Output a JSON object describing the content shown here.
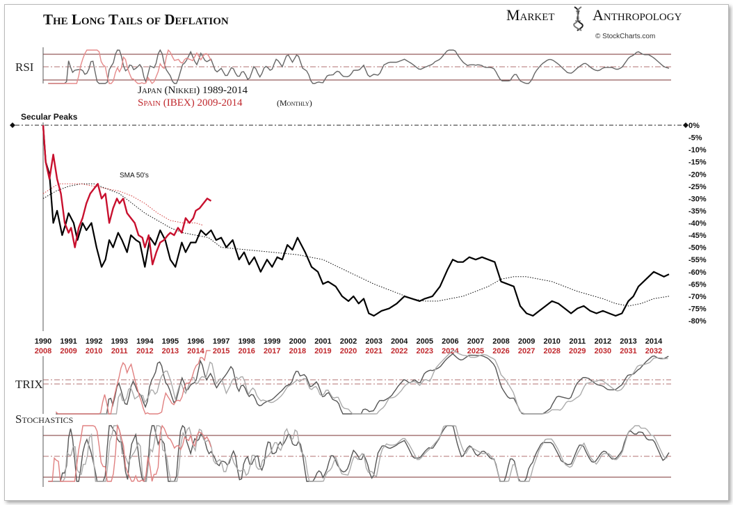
{
  "header": {
    "title": "The Long Tails of Deflation",
    "brand_left": "Market",
    "brand_right": "Anthropology",
    "credit": "© StockCharts.com"
  },
  "panels": {
    "rsi_label": "RSI",
    "trix_label": "TRIX",
    "stoch_label": "Stochastics"
  },
  "legend": {
    "japan": "Japan (Nikkei) 1989-2014",
    "spain": "Spain (IBEX) 2009-2014",
    "spain_suffix": "(Monthly)"
  },
  "annotations": {
    "secular_peaks": "Secular Peaks",
    "sma": "SMA 50's"
  },
  "colors": {
    "japan": "#000000",
    "spain": "#c8102e",
    "spain_label": "#c0282d",
    "sma_japan": "#000000",
    "sma_spain": "#d23a3a",
    "panel_line": "#7a3030"
  },
  "chart_data": {
    "type": "line",
    "ylim": [
      -82,
      0
    ],
    "y_ticks": [
      "0%",
      "-5%",
      "-10%",
      "-15%",
      "-20%",
      "-25%",
      "-30%",
      "-35%",
      "-40%",
      "-45%",
      "-50%",
      "-55%",
      "-60%",
      "-65%",
      "-70%",
      "-75%",
      "-80%"
    ],
    "y_tick_values": [
      0,
      -5,
      -10,
      -15,
      -20,
      -25,
      -30,
      -35,
      -40,
      -45,
      -50,
      -55,
      -60,
      -65,
      -70,
      -75,
      -80
    ],
    "x_ticks_japan": [
      "1990",
      "1991",
      "1992",
      "1993",
      "1994",
      "1995",
      "1996",
      "1997",
      "1998",
      "1999",
      "2000",
      "2001",
      "2002",
      "2003",
      "2004",
      "2005",
      "2006",
      "2007",
      "2008",
      "2009",
      "2010",
      "2011",
      "2012",
      "2013",
      "2014"
    ],
    "x_ticks_spain": [
      "2008",
      "2009",
      "2010",
      "2011",
      "2012",
      "2013",
      "2014",
      "2015",
      "2016",
      "2017",
      "2018",
      "2019",
      "2020",
      "2021",
      "2022",
      "2023",
      "2024",
      "2025",
      "2026",
      "2027",
      "2028",
      "2029",
      "2030",
      "2031",
      "2032"
    ],
    "x_range_japan": [
      1990,
      2014.6
    ],
    "series": [
      {
        "name": "Japan (Nikkei) 1989-2014",
        "x": [
          1990.0,
          1990.1,
          1990.25,
          1990.4,
          1990.55,
          1990.75,
          1990.9,
          1991.0,
          1991.2,
          1991.35,
          1991.55,
          1991.7,
          1991.9,
          1992.1,
          1992.3,
          1992.45,
          1992.6,
          1992.75,
          1992.95,
          1993.1,
          1993.3,
          1993.45,
          1993.65,
          1993.8,
          1994.0,
          1994.2,
          1994.4,
          1994.6,
          1994.8,
          1995.0,
          1995.2,
          1995.45,
          1995.6,
          1995.8,
          1996.0,
          1996.2,
          1996.4,
          1996.6,
          1996.8,
          1997.0,
          1997.2,
          1997.45,
          1997.7,
          1997.9,
          1998.1,
          1998.3,
          1998.55,
          1998.8,
          1999.0,
          1999.2,
          1999.4,
          1999.6,
          1999.8,
          2000.0,
          2000.1,
          2000.3,
          2000.55,
          2000.8,
          2001.0,
          2001.2,
          2001.5,
          2001.75,
          2002.0,
          2002.2,
          2002.4,
          2002.6,
          2002.8,
          2003.0,
          2003.3,
          2003.6,
          2003.9,
          2004.2,
          2004.5,
          2004.8,
          2005.0,
          2005.3,
          2005.6,
          2005.9,
          2006.1,
          2006.3,
          2006.5,
          2006.75,
          2007.0,
          2007.25,
          2007.5,
          2007.75,
          2008.0,
          2008.25,
          2008.5,
          2008.75,
          2009.0,
          2009.25,
          2009.5,
          2009.75,
          2010.0,
          2010.25,
          2010.5,
          2010.75,
          2011.0,
          2011.25,
          2011.5,
          2011.75,
          2012.0,
          2012.25,
          2012.5,
          2012.75,
          2013.0,
          2013.2,
          2013.4,
          2013.6,
          2013.8,
          2014.0,
          2014.2,
          2014.4,
          2014.6
        ],
        "y": [
          0,
          -15,
          -20,
          -40,
          -35,
          -45,
          -40,
          -36,
          -40,
          -47,
          -40,
          -43,
          -40,
          -50,
          -58,
          -55,
          -47,
          -50,
          -44,
          -47,
          -52,
          -45,
          -47,
          -48,
          -58,
          -46,
          -49,
          -43,
          -47,
          -55,
          -58,
          -48,
          -52,
          -48,
          -48,
          -43,
          -45,
          -43,
          -47,
          -46,
          -50,
          -47,
          -55,
          -52,
          -57,
          -54,
          -60,
          -55,
          -58,
          -54,
          -55,
          -49,
          -51,
          -46,
          -48,
          -52,
          -58,
          -60,
          -65,
          -64,
          -66,
          -70,
          -72,
          -70,
          -73,
          -71,
          -77,
          -78,
          -76,
          -75,
          -73,
          -70,
          -71,
          -72,
          -71,
          -70,
          -66,
          -59,
          -55,
          -56,
          -56,
          -54,
          -55,
          -54,
          -55,
          -56,
          -64,
          -65,
          -66,
          -74,
          -77,
          -78,
          -76,
          -74,
          -72,
          -73,
          -75,
          -77,
          -75,
          -74,
          -76,
          -77,
          -76,
          -77,
          -78,
          -77,
          -72,
          -70,
          -66,
          -64,
          -62,
          -60,
          -61,
          -62,
          -61
        ]
      },
      {
        "name": "Spain (IBEX) 2009-2014",
        "x": [
          2008.0,
          2008.1,
          2008.25,
          2008.4,
          2008.55,
          2008.7,
          2008.85,
          2009.0,
          2009.1,
          2009.25,
          2009.4,
          2009.55,
          2009.7,
          2009.85,
          2010.0,
          2010.15,
          2010.3,
          2010.45,
          2010.6,
          2010.75,
          2010.9,
          2011.0,
          2011.15,
          2011.3,
          2011.45,
          2011.6,
          2011.75,
          2011.9,
          2012.0,
          2012.15,
          2012.3,
          2012.45,
          2012.6,
          2012.75,
          2012.9,
          2013.0,
          2013.15,
          2013.3,
          2013.45,
          2013.6,
          2013.75,
          2013.9,
          2014.0,
          2014.15,
          2014.3,
          2014.45,
          2014.6
        ],
        "y": [
          0,
          -15,
          -22,
          -12,
          -22,
          -28,
          -40,
          -44,
          -42,
          -50,
          -42,
          -38,
          -32,
          -28,
          -26,
          -24,
          -30,
          -28,
          -40,
          -34,
          -30,
          -32,
          -30,
          -36,
          -38,
          -40,
          -45,
          -46,
          -50,
          -45,
          -57,
          -52,
          -48,
          -47,
          -45,
          -44,
          -45,
          -42,
          -44,
          -38,
          -40,
          -38,
          -35,
          -34,
          -32,
          -30,
          -31
        ]
      },
      {
        "name": "SMA 50's",
        "x": [
          1990.0,
          1990.5,
          1991.0,
          1991.5,
          1992.0,
          1992.5,
          1993.0,
          1993.5,
          1994.0,
          1994.5,
          1995.0,
          1995.5,
          1996.0,
          1996.5,
          1997.0,
          1998.0,
          1999.0,
          2000.0,
          2001.0,
          2002.0,
          2003.0,
          2004.0,
          2004.5,
          2005.0,
          2005.5,
          2006.0,
          2006.5,
          2007.0,
          2007.5,
          2008.0,
          2008.5,
          2009.0,
          2009.5,
          2010.0,
          2011.0,
          2012.0,
          2012.5,
          2013.0,
          2013.5,
          2014.0,
          2014.6
        ],
        "y": [
          -30,
          -27,
          -25,
          -24,
          -24,
          -26,
          -28,
          -32,
          -36,
          -39,
          -42,
          -44,
          -45,
          -46,
          -50,
          -51,
          -52,
          -53,
          -55,
          -60,
          -65,
          -69,
          -71,
          -72,
          -72,
          -71,
          -70,
          -68,
          -66,
          -63,
          -62,
          -62,
          -63,
          -64,
          -68,
          -71,
          -73,
          -74,
          -73,
          -71,
          -70
        ]
      },
      {
        "name": "SMA 50's",
        "x": [
          2008.0,
          2008.3,
          2008.6,
          2009.0,
          2009.5,
          2010.0,
          2010.5,
          2011.0,
          2011.5,
          2012.0,
          2012.5,
          2013.0,
          2013.5,
          2014.0,
          2014.3
        ],
        "y": [
          -28,
          -26,
          -24,
          -24,
          -24,
          -25,
          -26,
          -27,
          -29,
          -32,
          -36,
          -39,
          -40,
          -40,
          -41
        ]
      }
    ]
  }
}
